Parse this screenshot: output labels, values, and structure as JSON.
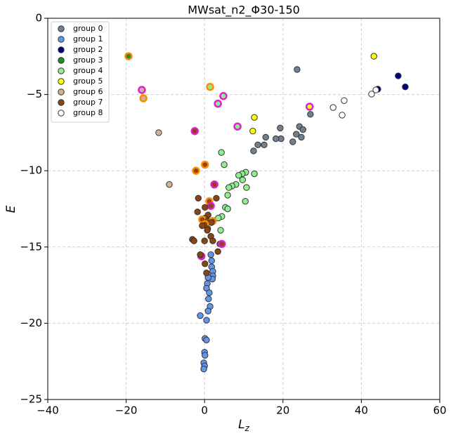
{
  "chart_data": {
    "type": "scatter",
    "title": "MWsat_n2_Φ30-150",
    "xlabel": {
      "base": "L",
      "sub": "z"
    },
    "ylabel": "E",
    "xlim": [
      -40,
      60
    ],
    "ylim": [
      -25,
      0
    ],
    "xticks": [
      {
        "value": -40,
        "label": "−40"
      },
      {
        "value": -20,
        "label": "−20"
      },
      0,
      20,
      40,
      60
    ],
    "yticks": [
      {
        "value": -25,
        "label": "−25"
      },
      {
        "value": -20,
        "label": "−20"
      },
      {
        "value": -15,
        "label": "−15"
      },
      {
        "value": -10,
        "label": "−10"
      },
      {
        "value": -5,
        "label": "−5"
      },
      0
    ],
    "grid": true,
    "legend": "upper left",
    "series": [
      {
        "name": "group 0",
        "color": "#708090",
        "x": [
          23.6,
          24.2,
          25.1,
          23.4,
          24.7,
          22.5,
          19.3,
          19.5,
          18.2,
          15.6,
          15.2,
          13.6,
          12.5,
          27.0
        ],
        "values": [
          -3.36,
          -7.1,
          -7.3,
          -7.6,
          -7.8,
          -8.1,
          -7.2,
          -7.9,
          -7.9,
          -7.8,
          -8.3,
          -8.3,
          -8.7,
          -6.3
        ]
      },
      {
        "name": "group 1",
        "color": "#6495ed",
        "x": [
          1.6,
          1.8,
          1.8,
          2.1,
          2.1,
          2.0,
          0.9,
          0.7,
          0.5,
          1.2,
          1.0,
          1.4,
          0.9,
          -1.1,
          0.5,
          0.1,
          0.5,
          0.0,
          0.1,
          -0.2,
          0.0,
          -0.2
        ],
        "values": [
          -15.5,
          -15.9,
          -16.3,
          -16.6,
          -16.9,
          -17.1,
          -17.0,
          -17.4,
          -17.7,
          -18.0,
          -18.4,
          -18.9,
          -19.2,
          -19.5,
          -19.8,
          -21.0,
          -21.1,
          -21.9,
          -22.1,
          -22.6,
          -22.8,
          -23.0
        ]
      },
      {
        "name": "group 2",
        "color": "#000080",
        "x": [
          49.4,
          51.2,
          44.2
        ],
        "values": [
          -3.78,
          -4.5,
          -4.65
        ]
      },
      {
        "name": "group 3",
        "color": "#228b22",
        "x": [
          -19.4
        ],
        "values": [
          -2.49
        ],
        "edgecolors": [
          "#ff8c00"
        ]
      },
      {
        "name": "group 4",
        "color": "#90ee90",
        "x": [
          4.3,
          5.0,
          10.5,
          9.6,
          12.7,
          8.7,
          9.7,
          8.0,
          7.0,
          6.2,
          10.7,
          5.9,
          10.4,
          5.3,
          5.9,
          4.4,
          3.5,
          4.1,
          1.4,
          4.8,
          3.4,
          8.4
        ],
        "values": [
          -8.8,
          -9.6,
          -10.1,
          -10.2,
          -10.2,
          -10.3,
          -10.6,
          -10.9,
          -11.0,
          -11.1,
          -11.1,
          -11.6,
          -12.0,
          -12.4,
          -12.5,
          -13.0,
          -13.1,
          -13.9,
          -4.5,
          -5.1,
          -5.6,
          -7.1
        ],
        "edgecolors": [
          "#333",
          "#333",
          "#333",
          "#333",
          "#333",
          "#333",
          "#333",
          "#333",
          "#333",
          "#333",
          "#333",
          "#333",
          "#333",
          "#333",
          "#333",
          "#333",
          "#333",
          "#333",
          "#ff8c00",
          "#e020d0",
          "#e020d0",
          "#e020d0"
        ]
      },
      {
        "name": "group 5",
        "color": "#ffff00",
        "x": [
          43.2,
          12.7,
          12.3,
          26.8
        ],
        "values": [
          -2.49,
          -6.5,
          -7.4,
          -5.8
        ],
        "edgecolors": [
          "#333",
          "#333",
          "#333",
          "#e020d0"
        ]
      },
      {
        "name": "group 6",
        "color": "#d2b48c",
        "x": [
          -11.7,
          -9.0,
          -16.0,
          -15.6
        ],
        "values": [
          -7.5,
          -10.9,
          -4.7,
          -5.25
        ],
        "edgecolors": [
          "#333",
          "#333",
          "#e020d0",
          "#ff8c00"
        ]
      },
      {
        "name": "group 7",
        "color": "#8b4513",
        "x": [
          -1.6,
          3.0,
          1.2,
          1.6,
          0.1,
          -1.8,
          0.9,
          0.1,
          -0.6,
          0.8,
          2.1,
          1.7,
          0.1,
          -0.6,
          0.8,
          0.7,
          1.6,
          -3.1,
          -2.7,
          0.0,
          2.1,
          3.9,
          4.4,
          3.4,
          -0.8,
          -1.1,
          0.1,
          0.5,
          0.1,
          -2.2,
          2.5,
          -2.5
        ],
        "values": [
          -11.8,
          -11.8,
          -12.0,
          -12.3,
          -12.4,
          -12.7,
          -12.9,
          -13.1,
          -13.2,
          -13.3,
          -13.3,
          -13.4,
          -13.5,
          -13.6,
          -13.8,
          -13.9,
          -14.3,
          -14.5,
          -14.6,
          -14.6,
          -14.6,
          -14.8,
          -14.8,
          -15.3,
          -15.6,
          -15.5,
          -16.1,
          -16.7,
          -9.6,
          -10.0,
          -10.9,
          -7.4
        ],
        "edgecolors": [
          "#333",
          "#333",
          "#ff8c00",
          "#e020d0",
          "#333",
          "#333",
          "#333",
          "#333",
          "#ff8c00",
          "#333",
          "#ff8c00",
          "#333",
          "#ff8c00",
          "#333",
          "#333",
          "#333",
          "#333",
          "#333",
          "#333",
          "#333",
          "#333",
          "#333",
          "#e020d0",
          "#333",
          "#e020d0",
          "#333",
          "#333",
          "#333",
          "#ff8c00",
          "#ff8c00",
          "#e020d0",
          "#e020d0"
        ]
      },
      {
        "name": "group 8",
        "color": "#ffffff",
        "x": [
          32.8,
          35.6,
          35.1,
          42.6,
          43.7
        ],
        "values": [
          -5.85,
          -5.4,
          -6.35,
          -4.97,
          -4.7
        ]
      }
    ]
  }
}
